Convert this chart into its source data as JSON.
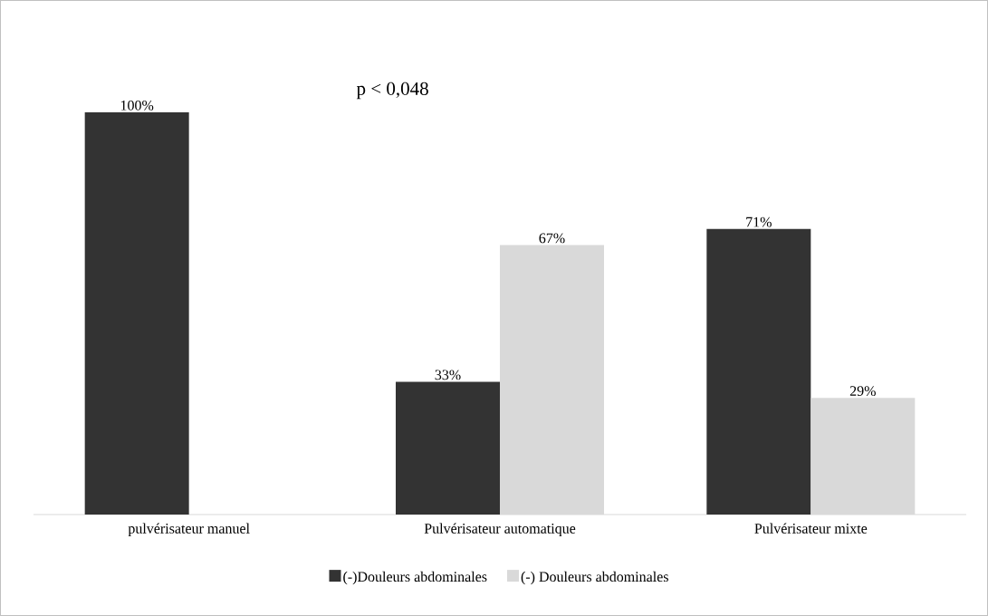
{
  "chart_data": {
    "type": "bar",
    "categories": [
      "pulvérisateur manuel",
      "Pulvérisateur automatique",
      "Pulvérisateur mixte"
    ],
    "series": [
      {
        "name": "(-)Douleurs abdominales",
        "color": "#333333",
        "values": [
          100,
          33,
          71
        ],
        "value_labels": [
          "100%",
          "33%",
          "71%"
        ]
      },
      {
        "name": "(-) Douleurs abdominales",
        "color": "#d9d9d9",
        "values": [
          null,
          67,
          29
        ],
        "value_labels": [
          null,
          "67%",
          "29%"
        ]
      }
    ],
    "annotations": [
      "p < 0,048"
    ],
    "legend": "bottom"
  }
}
